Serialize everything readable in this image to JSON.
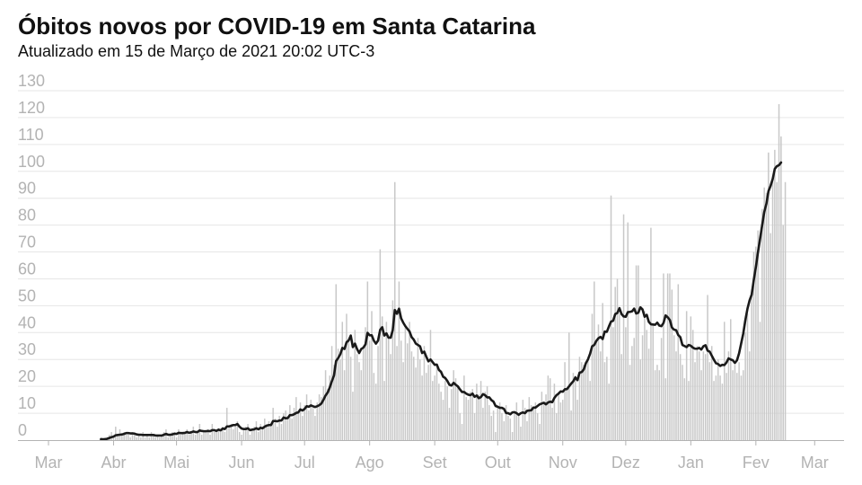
{
  "header": {
    "title": "Óbitos novos por COVID-19 em Santa Catarina",
    "subtitle": "Atualizado em 15 de Março de 2021 20:02 UTC-3"
  },
  "colors": {
    "bars": "#c8c8c8",
    "line": "#1a1a1a",
    "grid": "#e6e6e6",
    "tick_text": "#b3b3b3"
  },
  "chart_data": {
    "type": "bar",
    "title": "Óbitos novos por COVID-19 em Santa Catarina",
    "subtitle": "Atualizado em 15 de Março de 2021 20:02 UTC-3",
    "x_start": "2020-03-01",
    "x_end": "2021-03-15",
    "xlabel": "",
    "ylabel": "",
    "ylim": [
      0,
      130
    ],
    "yticks": [
      0,
      10,
      20,
      30,
      40,
      50,
      60,
      70,
      80,
      90,
      100,
      110,
      120,
      130
    ],
    "x_ticks": [
      {
        "label": "Mar",
        "date": "2020-03-01"
      },
      {
        "label": "Abr",
        "date": "2020-04-01"
      },
      {
        "label": "Mai",
        "date": "2020-05-01"
      },
      {
        "label": "Jun",
        "date": "2020-06-01"
      },
      {
        "label": "Jul",
        "date": "2020-07-01"
      },
      {
        "label": "Ago",
        "date": "2020-08-01"
      },
      {
        "label": "Set",
        "date": "2020-09-01"
      },
      {
        "label": "Out",
        "date": "2020-10-01"
      },
      {
        "label": "Nov",
        "date": "2020-11-01"
      },
      {
        "label": "Dez",
        "date": "2020-12-01"
      },
      {
        "label": "Jan",
        "date": "2021-01-01"
      },
      {
        "label": "Fev",
        "date": "2021-02-01"
      },
      {
        "label": "Mar",
        "date": "2021-03-01"
      }
    ],
    "grid": true,
    "series": [
      {
        "type": "bar",
        "start_date": "2020-03-26",
        "values": [
          1,
          0,
          1,
          1,
          2,
          3,
          1,
          5,
          2,
          4,
          2,
          3,
          2,
          2,
          1,
          3,
          2,
          1,
          2,
          1,
          3,
          1,
          2,
          1,
          3,
          2,
          1,
          2,
          1,
          2,
          3,
          4,
          1,
          2,
          3,
          2,
          1,
          4,
          2,
          3,
          3,
          4,
          2,
          3,
          5,
          2,
          3,
          6,
          2,
          3,
          3,
          4,
          2,
          6,
          3,
          3,
          4,
          3,
          5,
          3,
          12,
          5,
          6,
          4,
          6,
          7,
          3,
          2,
          4,
          5,
          6,
          2,
          4,
          5,
          7,
          3,
          6,
          4,
          8,
          5,
          7,
          6,
          12,
          8,
          5,
          9,
          6,
          10,
          11,
          9,
          13,
          8,
          12,
          16,
          10,
          14,
          9,
          13,
          17,
          11,
          15,
          12,
          9,
          14,
          17,
          16,
          20,
          26,
          19,
          24,
          35,
          28,
          58,
          34,
          30,
          44,
          26,
          47,
          37,
          31,
          18,
          41,
          32,
          29,
          26,
          34,
          42,
          59,
          37,
          48,
          25,
          21,
          35,
          71,
          46,
          22,
          44,
          38,
          32,
          52,
          96,
          35,
          59,
          37,
          29,
          42,
          36,
          44,
          33,
          31,
          27,
          38,
          30,
          24,
          35,
          25,
          28,
          41,
          22,
          24,
          27,
          21,
          18,
          15,
          22,
          20,
          12,
          19,
          26,
          23,
          20,
          10,
          6,
          24,
          16,
          15,
          18,
          19,
          10,
          21,
          17,
          22,
          12,
          18,
          20,
          13,
          9,
          11,
          3,
          12,
          14,
          10,
          7,
          13,
          9,
          8,
          3,
          10,
          14,
          9,
          5,
          15,
          12,
          7,
          16,
          13,
          12,
          14,
          10,
          6,
          18,
          14,
          17,
          24,
          23,
          12,
          21,
          10,
          18,
          14,
          15,
          29,
          19,
          40,
          11,
          25,
          24,
          15,
          31,
          29,
          28,
          28,
          30,
          22,
          47,
          59,
          37,
          43,
          33,
          51,
          29,
          31,
          21,
          91,
          42,
          57,
          60,
          47,
          32,
          84,
          42,
          81,
          28,
          35,
          38,
          65,
          65,
          30,
          39,
          48,
          41,
          34,
          79,
          43,
          26,
          28,
          26,
          38,
          62,
          23,
          62,
          62,
          56,
          39,
          33,
          58,
          32,
          28,
          23,
          48,
          22,
          46,
          41,
          29,
          35,
          33,
          26,
          33,
          32,
          54,
          29,
          35,
          22,
          24,
          30,
          24,
          21,
          44,
          25,
          33,
          45,
          26,
          28,
          25,
          29,
          24,
          26,
          40,
          47,
          33,
          56,
          70,
          72,
          78,
          44,
          86,
          94,
          92,
          107,
          77,
          98,
          108,
          96,
          125,
          113,
          80,
          96
        ]
      },
      {
        "type": "line",
        "name": "",
        "start_date": "2020-03-26",
        "values": [
          0.3,
          0.3,
          0.3,
          0.5,
          0.8,
          1.1,
          1.3,
          1.8,
          1.9,
          2.0,
          2.1,
          2.3,
          2.6,
          2.6,
          2.5,
          2.5,
          2.4,
          2.1,
          2.0,
          2.0,
          1.9,
          1.9,
          1.9,
          1.9,
          1.9,
          1.9,
          1.7,
          1.7,
          1.7,
          1.7,
          2.0,
          2.3,
          2.0,
          2.0,
          2.1,
          2.4,
          2.3,
          2.7,
          2.6,
          2.6,
          2.7,
          3.0,
          2.7,
          2.9,
          3.2,
          3.0,
          3.0,
          3.6,
          3.4,
          3.3,
          3.3,
          3.4,
          3.3,
          3.7,
          3.7,
          3.4,
          3.9,
          3.6,
          4.3,
          4.1,
          5.1,
          5.1,
          5.3,
          5.6,
          5.6,
          6.0,
          5.0,
          4.3,
          4.1,
          4.1,
          4.4,
          3.7,
          3.9,
          4.0,
          4.4,
          4.0,
          4.6,
          4.4,
          5.0,
          5.4,
          5.6,
          5.6,
          7.1,
          7.1,
          7.0,
          7.3,
          7.3,
          8.4,
          8.1,
          8.2,
          9.3,
          9.3,
          9.6,
          10.1,
          10.3,
          11.4,
          11.0,
          11.6,
          12.6,
          12.4,
          12.9,
          12.6,
          12.3,
          12.6,
          13.0,
          13.6,
          15.0,
          16.6,
          17.7,
          19.6,
          21.9,
          24.0,
          29.4,
          30.5,
          31.9,
          34.3,
          33.9,
          36.4,
          37.1,
          38.9,
          34.6,
          35.9,
          33.9,
          32.4,
          33.9,
          34.4,
          35.6,
          39.9,
          39.0,
          39.0,
          37.0,
          35.9,
          37.0,
          41.0,
          42.0,
          38.9,
          39.7,
          38.1,
          38.1,
          40.9,
          48.4,
          47.0,
          48.9,
          45.3,
          43.7,
          42.4,
          41.4,
          40.4,
          38.3,
          37.4,
          35.9,
          35.4,
          34.9,
          32.4,
          32.9,
          31.0,
          29.3,
          30.0,
          29.0,
          28.0,
          28.1,
          26.1,
          25.4,
          23.6,
          23.1,
          22.0,
          20.6,
          20.3,
          21.3,
          20.6,
          20.0,
          18.9,
          17.9,
          17.9,
          17.3,
          16.9,
          16.7,
          17.3,
          16.1,
          16.6,
          15.6,
          16.0,
          17.1,
          16.7,
          15.9,
          15.9,
          14.9,
          14.3,
          12.7,
          12.4,
          12.0,
          12.0,
          11.6,
          10.1,
          10.0,
          9.6,
          10.3,
          10.4,
          10.0,
          9.4,
          10.0,
          10.3,
          10.0,
          10.9,
          11.0,
          11.1,
          12.1,
          12.1,
          12.7,
          13.3,
          13.6,
          13.9,
          13.3,
          14.0,
          14.3,
          14.1,
          15.7,
          16.7,
          17.3,
          18.1,
          18.0,
          18.9,
          19.0,
          20.0,
          21.0,
          21.9,
          23.3,
          22.3,
          25.1,
          25.3,
          26.3,
          28.6,
          30.0,
          32.1,
          34.9,
          35.4,
          36.9,
          37.9,
          38.4,
          37.6,
          40.4,
          40.3,
          42.3,
          44.1,
          44.4,
          46.9,
          47.3,
          49.1,
          46.9,
          46.0,
          45.9,
          47.6,
          47.7,
          47.9,
          48.9,
          47.1,
          47.4,
          49.4,
          48.6,
          45.9,
          46.6,
          44.0,
          43.1,
          43.0,
          42.9,
          43.7,
          42.6,
          42.4,
          43.6,
          46.4,
          45.7,
          44.7,
          41.9,
          41.1,
          40.9,
          39.1,
          38.3,
          35.4,
          35.0,
          34.6,
          35.4,
          35.1,
          34.4,
          34.0,
          34.0,
          34.3,
          33.7,
          34.9,
          35.3,
          33.3,
          32.9,
          31.4,
          29.9,
          28.6,
          28.3,
          27.6,
          28.0,
          27.9,
          28.9,
          30.4,
          30.0,
          29.7,
          28.7,
          29.7,
          32.3,
          36.0,
          39.7,
          44.7,
          48.9,
          52.0,
          54.1,
          59.6,
          64.4,
          69.9,
          74.9,
          80.0,
          84.9,
          87.9,
          92.6,
          94.6,
          97.1,
          100.9,
          101.9,
          102.3,
          103.3
        ]
      }
    ]
  }
}
